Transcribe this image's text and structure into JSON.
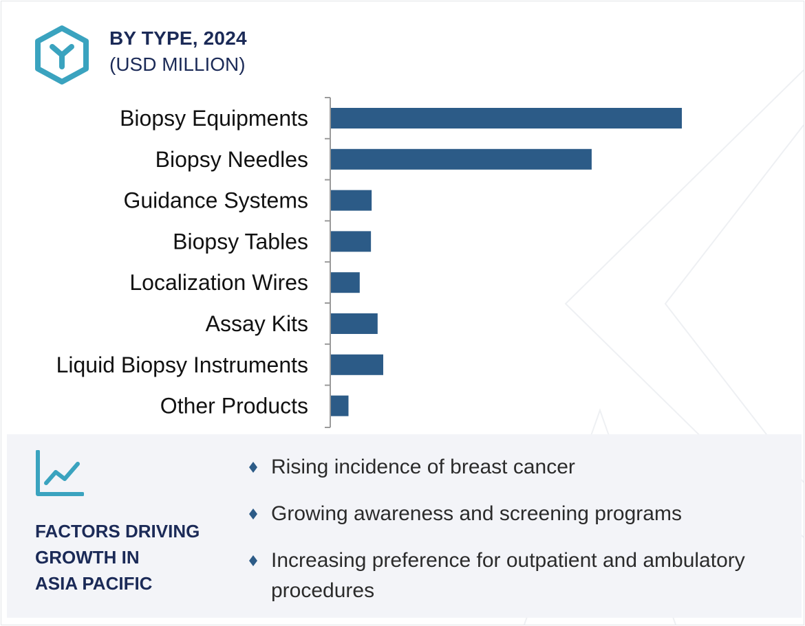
{
  "header": {
    "title": "BY TYPE, 2024",
    "subtitle": "(USD MILLION)",
    "logo_icon": "hexagon-y-logo-icon"
  },
  "colors": {
    "bar": "#2c5b87",
    "heading": "#1b2a57",
    "accent_teal": "#3aa3bf",
    "panel_bg": "#f3f4f8"
  },
  "chart_data": {
    "type": "bar",
    "orientation": "horizontal",
    "title": "BY TYPE, 2024",
    "subtitle": "(USD MILLION)",
    "categories": [
      "Biopsy Equipments",
      "Biopsy Needles",
      "Guidance Systems",
      "Biopsy Tables",
      "Localization Wires",
      "Assay Kits",
      "Liquid Biopsy Instruments",
      "Other Products"
    ],
    "values": [
      100,
      74.3,
      11.6,
      11.4,
      8.2,
      13.3,
      14.9,
      5.0
    ],
    "xlim": [
      0,
      100
    ],
    "value_note": "Relative bar lengths; no axis values shown",
    "grid": false,
    "legend": "none"
  },
  "factors": {
    "icon": "trend-line-chart-icon",
    "heading_lines": [
      "FACTORS DRIVING",
      "GROWTH IN",
      "ASIA PACIFIC"
    ],
    "bullet_icon": "diamond-bullet-icon",
    "items": [
      "Rising incidence of breast cancer",
      "Growing awareness and screening programs",
      "Increasing preference for outpatient and ambulatory procedures"
    ]
  }
}
